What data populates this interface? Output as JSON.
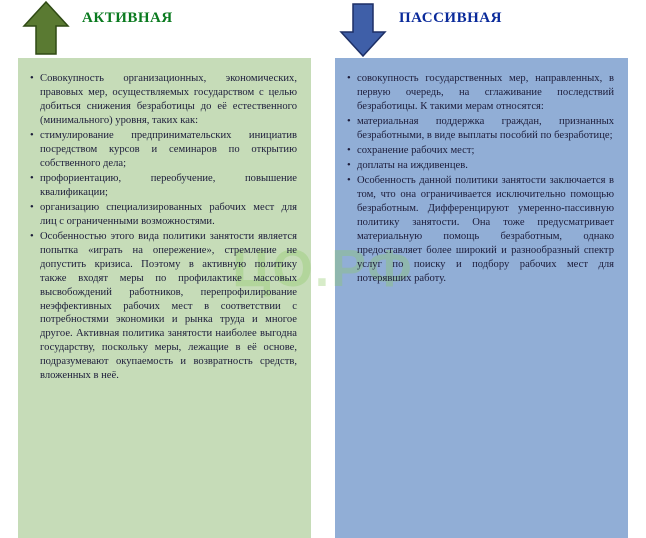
{
  "watermark": "ЦО.РФ",
  "left": {
    "title": "АКТИВНАЯ",
    "title_color": "#0a7a1f",
    "arrow_dir": "up",
    "arrow_fill": "#5a7a32",
    "arrow_stroke": "#2f4a14",
    "body_bg": "#c6dcb8",
    "items": [
      "Совокупность организационных, экономических, правовых мер, осуществляемых государством с целью добиться снижения безработицы до её естественного (минимального) уровня, таких как:",
      "стимулирование предпринимательских инициатив посредством курсов и семинаров по открытию собственного дела;",
      "профориентацию, переобучение, повышение квалификации;",
      "организацию специализированных рабочих мест для лиц с ограниченными возможностями.",
      "Особенностью этого вида политики занятости является попытка «играть на опережение», стремление не допустить кризиса. Поэтому в активную политику также входят меры по профилактике массовых высвобождений работников, перепрофилирование неэффективных рабочих мест в соответствии с потребностями экономики и рынка труда и многое другое. Активная политика занятости наиболее выгодна государству, поскольку меры, лежащие в её основе, подразумевают окупаемость и возвратность средств, вложенных в неё."
    ]
  },
  "right": {
    "title": "ПАССИВНАЯ",
    "title_color": "#0a2a9a",
    "arrow_dir": "down",
    "arrow_fill": "#3f5fa8",
    "arrow_stroke": "#1d2f66",
    "body_bg": "#91aed6",
    "items": [
      "совокупность государственных мер, направленных, в первую очередь, на сглаживание последствий безработицы. К такими мерам относятся:",
      "материальная поддержка граждан, признанных безработными, в виде выплаты пособий по безработице;",
      " сохранение рабочих мест;",
      " доплаты на иждивенцев.",
      "Особенность данной политики занятости заключается в том, что она ограничивается исключительно помощью безработным. Дифференцируют умеренно-пассивную политику занятости. Она тоже предусматривает материальную помощь безработным, однако предоставляет более широкий и разнообразный спектр услуг по поиску и подбору рабочих мест для потерявших работу."
    ]
  }
}
